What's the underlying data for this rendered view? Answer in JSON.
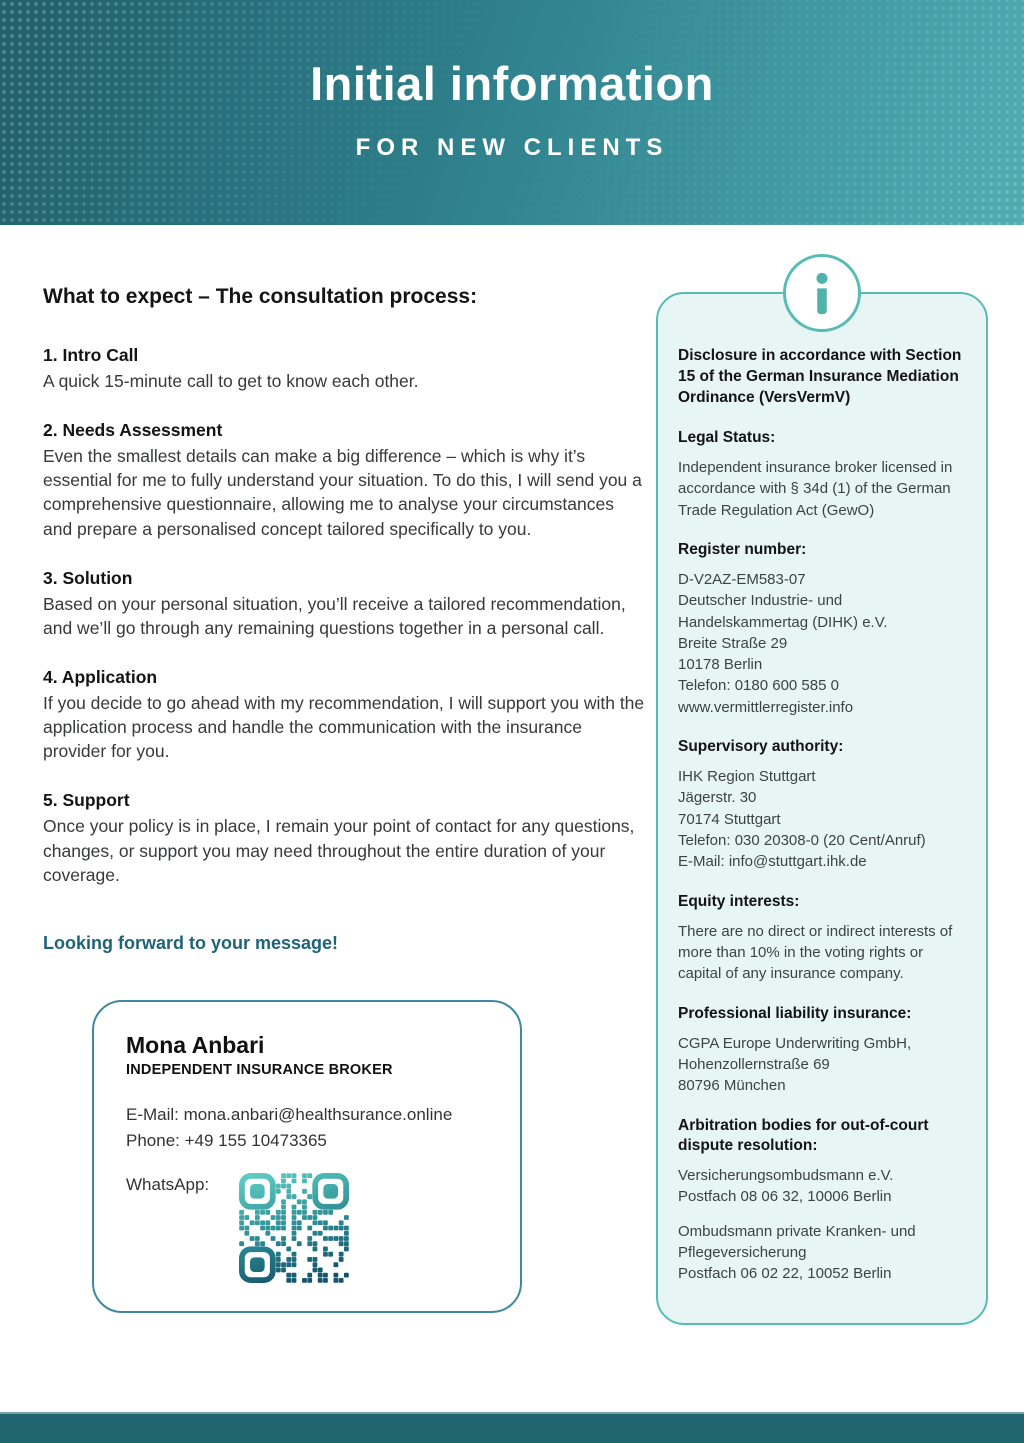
{
  "header": {
    "title": "Initial information",
    "subtitle": "FOR NEW CLIENTS"
  },
  "process": {
    "heading": "What to expect – The consultation process:",
    "steps": [
      {
        "title": "1. Intro Call",
        "body": "A quick 15-minute call to get to know each other."
      },
      {
        "title": "2. Needs Assessment",
        "body": "Even the smallest details can make a big difference – which is why it’s essential for me to fully understand your situation. To do this, I will send you a comprehensive questionnaire, allowing me to analyse your circumstances and prepare a personalised concept tailored specifically to you."
      },
      {
        "title": "3. Solution",
        "body": "Based on your personal situation, you’ll receive a tailored recommendation, and we’ll go through any remaining questions together in a personal call."
      },
      {
        "title": "4. Application",
        "body": "If you decide to go ahead with my recommendation, I will support you with the application process and handle the communication with the insurance provider for you."
      },
      {
        "title": "5. Support",
        "body": "Once your policy is in place, I remain your point of contact for any questions, changes, or support you may need throughout the entire duration of your coverage."
      }
    ],
    "closing": "Looking forward to your message!"
  },
  "contact_card": {
    "name": "Mona Anbari",
    "role": "INDEPENDENT INSURANCE BROKER",
    "email_line": "E-Mail: mona.anbari@healthsurance.online",
    "phone_line": "Phone: +49 155 10473365",
    "whatsapp_label": "WhatsApp:"
  },
  "disclosure": {
    "title": "Disclosure in accordance with Section 15 of the German Insurance Mediation Ordinance (VersVermV)",
    "sections": [
      {
        "heading": "Legal Status:",
        "paragraphs": [
          [
            "Independent insurance broker licensed in accordance with § 34d (1) of the German Trade Regulation Act (GewO)"
          ]
        ]
      },
      {
        "heading": "Register number:",
        "paragraphs": [
          [
            "D-V2AZ-EM583-07",
            "Deutscher Industrie- und",
            "Handelskammertag (DIHK) e.V.",
            "Breite Straße 29",
            "10178 Berlin",
            "Telefon: 0180 600 585 0",
            "www.vermittlerregister.info"
          ]
        ]
      },
      {
        "heading": "Supervisory authority:",
        "paragraphs": [
          [
            "IHK Region Stuttgart",
            "Jägerstr. 30",
            "70174 Stuttgart",
            "Telefon: 030 20308-0 (20 Cent/Anruf)",
            "E-Mail: info@stuttgart.ihk.de"
          ]
        ]
      },
      {
        "heading": "Equity interests:",
        "paragraphs": [
          [
            "There are no direct or indirect interests of more than 10% in the voting rights or capital of any insurance company."
          ]
        ]
      },
      {
        "heading": "Professional liability insurance:",
        "paragraphs": [
          [
            "CGPA Europe Underwriting GmbH,",
            "Hohenzollernstraße 69",
            "80796 München"
          ]
        ]
      },
      {
        "heading": "Arbitration bodies for out-of-court dispute resolution:",
        "paragraphs": [
          [
            "Versicherungsombudsmann e.V.",
            "Postfach 08 06 32, 10006 Berlin"
          ],
          [
            "Ombudsmann private Kranken- und",
            "Pflegeversicherung",
            "Postfach 06 02 22, 10052 Berlin"
          ]
        ]
      }
    ]
  },
  "colors": {
    "header_dark": "#215f6d",
    "header_mid": "#2e7f8b",
    "header_light": "#4fadb2",
    "accent": "#57bcb4",
    "box_bg": "#e7f5f4",
    "dark_teal": "#1e6478",
    "card_border": "#3f89a0",
    "footer": "#1f646f",
    "qr_gradient_top": "#5ecac1",
    "qr_gradient_mid": "#2f8f97",
    "qr_gradient_bottom": "#14546a"
  }
}
